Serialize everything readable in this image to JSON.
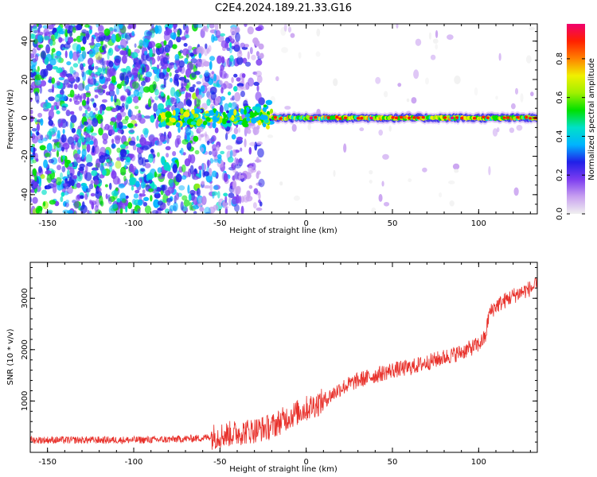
{
  "title": "C2E4.2024.189.21.33.G16",
  "chart_data": [
    {
      "type": "heatmap",
      "xlabel": "Height of straight line (km)",
      "ylabel": "Frequency (Hz)",
      "xlim": [
        -160,
        134
      ],
      "ylim": [
        -50,
        49
      ],
      "xticks": [
        -150,
        -100,
        -50,
        0,
        50,
        100
      ],
      "yticks": [
        -40,
        -20,
        0,
        20,
        40
      ],
      "colorbar": {
        "label": "Normalized spectral amplitude",
        "range": [
          0.0,
          0.98
        ],
        "ticks": [
          0.0,
          0.2,
          0.4,
          0.6,
          0.8
        ],
        "colormap": [
          "#f0f0f0",
          "#c8a0f0",
          "#7c3cf0",
          "#2020e8",
          "#00b4ff",
          "#00e0c8",
          "#00e000",
          "#a0f000",
          "#f0f000",
          "#ff8000",
          "#ff2000",
          "#f0006e"
        ]
      },
      "features": [
        {
          "x_range": [
            -160,
            -62
          ],
          "description": "dense scattered noise across all frequencies"
        },
        {
          "x_range": [
            -62,
            -25
          ],
          "description": "sparse scattered noise"
        },
        {
          "x_range": [
            -85,
            -20
          ],
          "freq_hz": 0,
          "amplitude": 0.45
        },
        {
          "x_range": [
            -20,
            134
          ],
          "freq_hz": 0,
          "amplitude": 0.9
        }
      ],
      "grid": false
    },
    {
      "type": "line",
      "xlabel": "Height of straight line (km)",
      "ylabel": "SNR (10 * v/v)",
      "xlim": [
        -160,
        134
      ],
      "ylim": [
        0,
        3700
      ],
      "xticks": [
        -150,
        -100,
        -50,
        0,
        50,
        100
      ],
      "yticks": [
        1000,
        2000,
        3000
      ],
      "color": "#e8312b",
      "x": [
        -160,
        -140,
        -120,
        -100,
        -80,
        -60,
        -50,
        -40,
        -30,
        -20,
        -10,
        0,
        10,
        20,
        30,
        40,
        50,
        60,
        70,
        80,
        90,
        100,
        104,
        106,
        110,
        120,
        134
      ],
      "y": [
        240,
        240,
        240,
        240,
        250,
        280,
        330,
        380,
        430,
        500,
        700,
        850,
        1000,
        1250,
        1400,
        1500,
        1600,
        1650,
        1750,
        1850,
        1950,
        2100,
        2250,
        2700,
        2850,
        3050,
        3250
      ],
      "noise": 160,
      "grid": false
    }
  ]
}
